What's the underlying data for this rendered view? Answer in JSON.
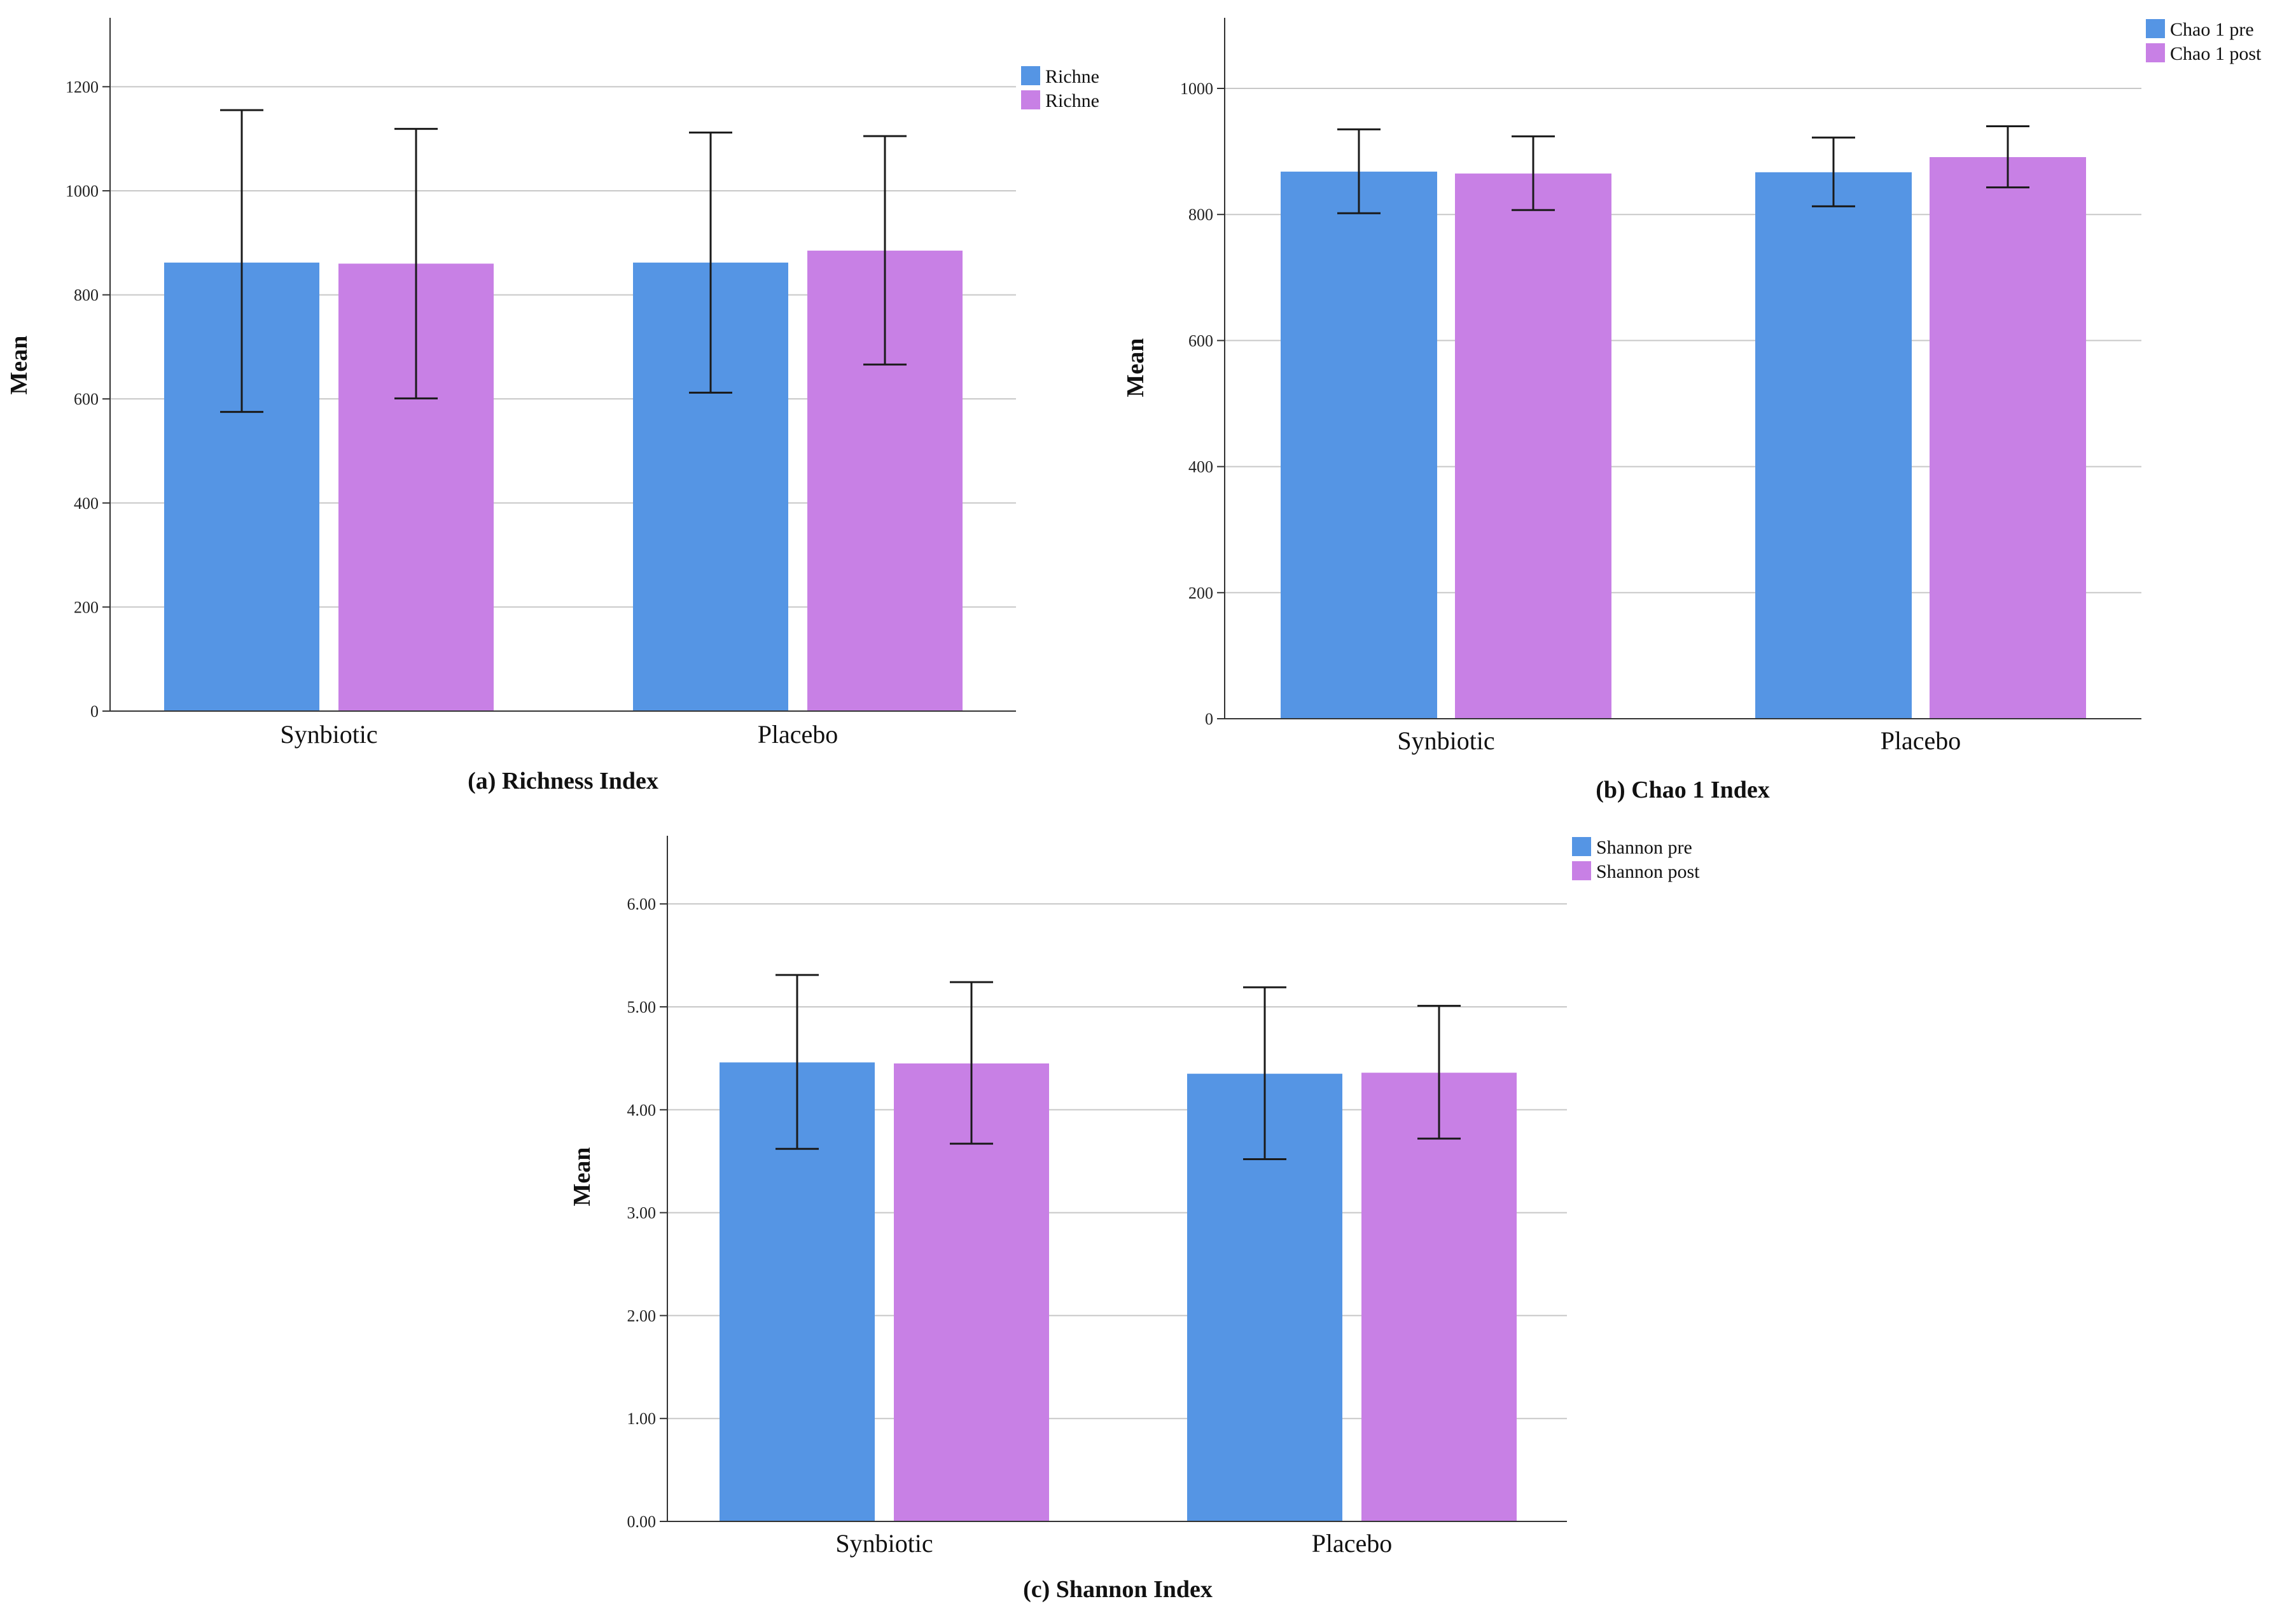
{
  "colors": {
    "pre": "#5595E4",
    "post": "#C880E5",
    "grid": "#c8c8c8",
    "axis": "#333333",
    "errorbar": "#1a1a1a"
  },
  "chart_data": [
    {
      "type": "bar",
      "title": "(a) Richness Index",
      "xlabel": "",
      "ylabel": "Mean",
      "categories": [
        "Synbiotic",
        "Placebo"
      ],
      "ylim": [
        0,
        1330
      ],
      "yticks": [
        0,
        200,
        400,
        600,
        800,
        1000,
        1200
      ],
      "tick_decimals": 0,
      "legend_position": "top-right",
      "series": [
        {
          "name": "Richne",
          "color_key": "pre",
          "values": [
            862,
            862
          ],
          "err_low": [
            575,
            612
          ],
          "err_high": [
            1155,
            1112
          ]
        },
        {
          "name": "Richne",
          "color_key": "post",
          "values": [
            860,
            885
          ],
          "err_low": [
            601,
            666
          ],
          "err_high": [
            1119,
            1105
          ]
        }
      ]
    },
    {
      "type": "bar",
      "title": "(b) Chao 1 Index",
      "xlabel": "",
      "ylabel": "Mean",
      "categories": [
        "Synbiotic",
        "Placebo"
      ],
      "ylim": [
        0,
        1110
      ],
      "yticks": [
        0,
        200,
        400,
        600,
        800,
        1000
      ],
      "tick_decimals": 0,
      "legend_position": "top-right",
      "series": [
        {
          "name": "Chao 1 pre",
          "color_key": "pre",
          "values": [
            868,
            867
          ],
          "err_low": [
            802,
            813
          ],
          "err_high": [
            935,
            922
          ]
        },
        {
          "name": "Chao 1 post",
          "color_key": "post",
          "values": [
            865,
            891
          ],
          "err_low": [
            807,
            843
          ],
          "err_high": [
            924,
            940
          ]
        }
      ]
    },
    {
      "type": "bar",
      "title": "(c) Shannon Index",
      "xlabel": "",
      "ylabel": "Mean",
      "categories": [
        "Synbiotic",
        "Placebo"
      ],
      "ylim": [
        0,
        6.65
      ],
      "yticks": [
        0,
        1,
        2,
        3,
        4,
        5,
        6
      ],
      "tick_decimals": 2,
      "legend_position": "top-right",
      "series": [
        {
          "name": "Shannon pre",
          "color_key": "pre",
          "values": [
            4.46,
            4.35
          ],
          "err_low": [
            3.62,
            3.52
          ],
          "err_high": [
            5.31,
            5.19
          ]
        },
        {
          "name": "Shannon post",
          "color_key": "post",
          "values": [
            4.45,
            4.36
          ],
          "err_low": [
            3.67,
            3.72
          ],
          "err_high": [
            5.24,
            5.01
          ]
        }
      ]
    }
  ]
}
